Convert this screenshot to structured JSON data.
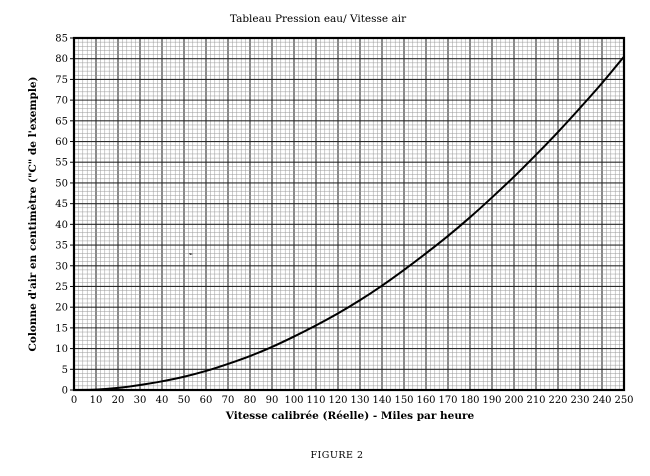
{
  "chart_data": {
    "type": "line",
    "title": "Tableau Pression eau/ Vitesse air",
    "xlabel": "Vitesse calibrée (Réelle) - Miles par heure",
    "ylabel": "Colonne d'air en centimètre (\"C\" de l'exemple)",
    "caption": "FIGURE 2",
    "xlim": [
      0,
      250
    ],
    "ylim": [
      0,
      85
    ],
    "x_ticks": [
      0,
      10,
      20,
      30,
      40,
      50,
      60,
      70,
      80,
      90,
      100,
      110,
      120,
      130,
      140,
      150,
      160,
      170,
      180,
      190,
      200,
      210,
      220,
      230,
      240,
      250
    ],
    "y_ticks": [
      0,
      5,
      10,
      15,
      20,
      25,
      30,
      35,
      40,
      45,
      50,
      55,
      60,
      65,
      70,
      75,
      80,
      85
    ],
    "grid": true,
    "series": [
      {
        "x": [
          0,
          10,
          20,
          30,
          40,
          50,
          60,
          70,
          80,
          90,
          100,
          110,
          120,
          130,
          140,
          150,
          160,
          170,
          180,
          190,
          200,
          210,
          220,
          230,
          240,
          250
        ],
        "y": [
          0,
          0.1,
          0.5,
          1.2,
          2.1,
          3.2,
          4.6,
          6.3,
          8.2,
          10.4,
          12.9,
          15.6,
          18.5,
          21.7,
          25.2,
          29.0,
          33.0,
          37.2,
          41.7,
          46.5,
          51.5,
          56.8,
          62.3,
          68.1,
          74.1,
          80.5
        ],
        "color": "#000000"
      }
    ]
  }
}
